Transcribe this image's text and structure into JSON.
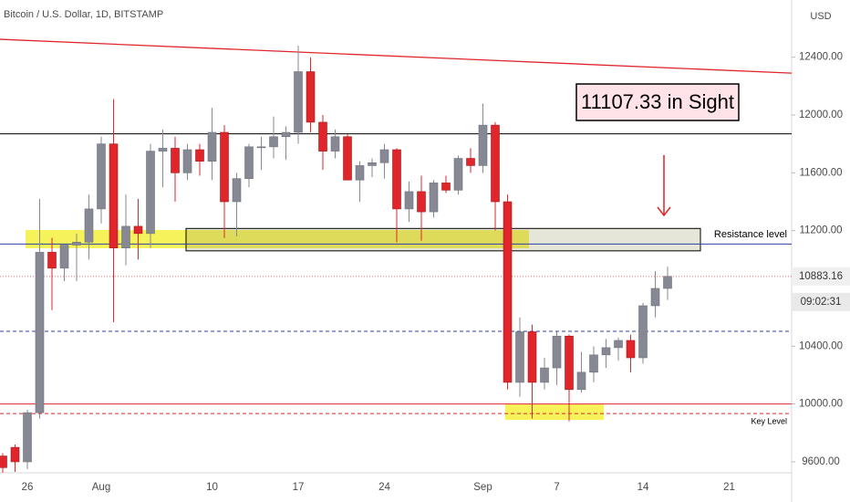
{
  "chart_data": {
    "type": "candlestick",
    "title": "Bitcoin / U.S. Dollar, 1D, BITSTAMP",
    "currency": "USD",
    "categories": [
      null,
      null,
      "26",
      null,
      null,
      null,
      null,
      null,
      "Aug",
      null,
      null,
      null,
      null,
      null,
      null,
      null,
      null,
      "10",
      null,
      null,
      null,
      null,
      null,
      null,
      "17",
      null,
      null,
      null,
      null,
      null,
      null,
      "24",
      null,
      null,
      null,
      null,
      null,
      null,
      null,
      "Sep",
      null,
      null,
      null,
      null,
      null,
      "7",
      null,
      null,
      null,
      null,
      null,
      null,
      "14",
      null,
      null,
      null,
      null,
      null,
      null,
      "21",
      null,
      null,
      null,
      null
    ],
    "open": [
      9640,
      9700,
      9600,
      9940,
      11050,
      10940,
      11100,
      11120,
      11350,
      11800,
      11080,
      11230,
      11180,
      11750,
      11770,
      11600,
      11760,
      11680,
      11880,
      11400,
      11560,
      11780,
      11780,
      11850,
      11880,
      12300,
      11950,
      11750,
      11850,
      11550,
      11650,
      11670,
      11760,
      11350,
      11470,
      11330,
      11530,
      11480,
      11700,
      11650,
      11930,
      11400,
      10150,
      10500,
      10150,
      10250,
      10470,
      10100,
      10220,
      10340,
      10390,
      10440,
      10320,
      10680,
      10800,
      null,
      null,
      null,
      null,
      null,
      null,
      null,
      null,
      null
    ],
    "high": [
      9660,
      9720,
      9960,
      11420,
      11150,
      11100,
      11180,
      11450,
      11850,
      12110,
      11450,
      11420,
      11800,
      11900,
      11850,
      11800,
      11800,
      12050,
      11930,
      11600,
      11800,
      11850,
      11990,
      11920,
      12480,
      12400,
      12000,
      11900,
      11870,
      11680,
      11700,
      11800,
      11770,
      11540,
      11580,
      11550,
      11580,
      11720,
      11770,
      12080,
      11950,
      11450,
      10600,
      10550,
      10320,
      10500,
      10480,
      10360,
      10400,
      10450,
      10460,
      10480,
      10700,
      10920,
      10950,
      null,
      null,
      null,
      null,
      null,
      null,
      null,
      null,
      null
    ],
    "low": [
      9525,
      9530,
      9550,
      9900,
      10650,
      10850,
      10850,
      11000,
      11250,
      10566,
      10960,
      11000,
      11080,
      11500,
      11400,
      11550,
      11580,
      11550,
      11150,
      11160,
      11500,
      11620,
      11700,
      11690,
      11800,
      11880,
      11620,
      11700,
      11550,
      11400,
      11570,
      11560,
      11120,
      11260,
      11130,
      11290,
      11460,
      11450,
      11600,
      11600,
      11200,
      10100,
      10050,
      9900,
      10100,
      10130,
      9880,
      10080,
      10150,
      10250,
      10300,
      10220,
      10280,
      10600,
      10720,
      null,
      null,
      null,
      null,
      null,
      null,
      null,
      null,
      null
    ],
    "close": [
      9560,
      9600,
      9940,
      11050,
      10940,
      11100,
      11120,
      11350,
      11800,
      11080,
      11230,
      11180,
      11750,
      11770,
      11600,
      11760,
      11680,
      11880,
      11400,
      11560,
      11780,
      11780,
      11850,
      11880,
      12300,
      11950,
      11750,
      11850,
      11550,
      11650,
      11670,
      11760,
      11350,
      11470,
      11330,
      11530,
      11480,
      11700,
      11650,
      11930,
      11400,
      10150,
      10500,
      10150,
      10250,
      10470,
      10100,
      10220,
      10340,
      10390,
      10440,
      10320,
      10680,
      10800,
      10883.16,
      null,
      null,
      null,
      null,
      null,
      null,
      null,
      null,
      null
    ],
    "up_color": "#868993",
    "down_color": "#e0262b",
    "ylim": [
      9524,
      12796
    ],
    "yticks": [
      {
        "value": 9600,
        "label": "9600.00"
      },
      {
        "value": 10000,
        "label": "10000.00"
      },
      {
        "value": 10400,
        "label": "10400.00"
      },
      {
        "value": 11200,
        "label": "11200.00"
      },
      {
        "value": 11600,
        "label": "11600.00"
      },
      {
        "value": 12000,
        "label": "12000.00"
      },
      {
        "value": 12400,
        "label": "12400.00"
      }
    ],
    "countdown": "09:02:31",
    "annotations": [
      {
        "text": "11107.33 in Sight"
      },
      {
        "text": "Resistance level"
      },
      {
        "text": "Key Level"
      }
    ],
    "trendline": {
      "values": [
        12524,
        12290
      ],
      "color": "#e0262b"
    },
    "hlines": [
      {
        "value": 11870,
        "color": "#000000",
        "dash": false
      },
      {
        "value": 11107.33,
        "color": "#2f3fa8",
        "dash": false
      },
      {
        "value": 10503,
        "color": "#2f3fa8",
        "dash": true
      },
      {
        "value": 10000,
        "color": "#e0262b",
        "dash": false
      },
      {
        "value": 9934,
        "color": "#e0262b",
        "dash": true
      }
    ],
    "zones": [
      {
        "values": [
          11204,
          11078
        ],
        "color": "#f5f03c"
      },
      {
        "values": [
          11215,
          11060
        ],
        "color": "#000000"
      },
      {
        "values": [
          9997,
          9890
        ],
        "color": "#f5f03c"
      }
    ]
  }
}
